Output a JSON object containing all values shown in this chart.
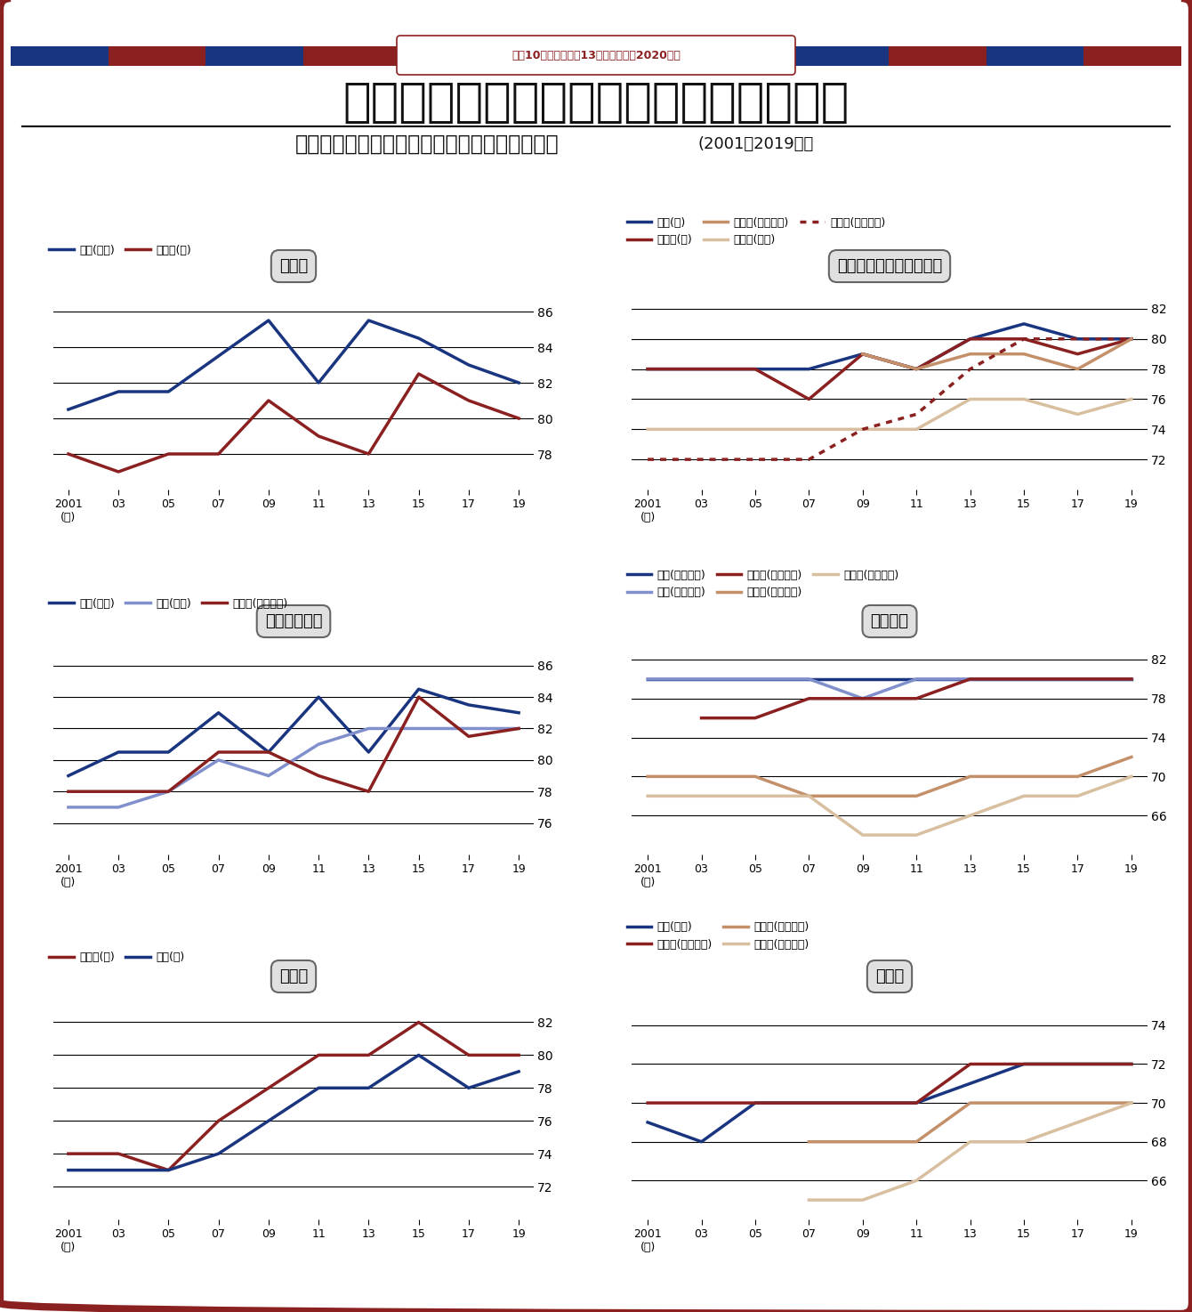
{
  "years": [
    2001,
    2003,
    2005,
    2007,
    2009,
    2011,
    2013,
    2015,
    2017,
    2019
  ],
  "x_labels": [
    "2001\n(年)",
    "03",
    "05",
    "07",
    "09",
    "11",
    "13",
    "15",
    "17",
    "19"
  ],
  "main_title": "早慶ともに非看板学部の偶差値が上昇中",
  "subtitle_bold": "慶應義塾大学・早稲田大学の入学偶差値の推移",
  "subtitle_normal": "(2001～2019年）",
  "header_note": "慶應10学部・早稲甑13学部の新序列2020年版",
  "border_red": "#8B2020",
  "border_blue": "#1a3580",
  "stripe_colors": [
    "#1a3580",
    "#8B2020"
  ],
  "law": {
    "title": "法律系",
    "ylim": [
      76,
      87
    ],
    "yticks": [
      78,
      80,
      82,
      84,
      86
    ],
    "legend_ncol": 2,
    "legend_nrow": 1,
    "series": [
      {
        "label": "慶應(法法)",
        "color": "#1a3580",
        "linestyle": "solid",
        "values": [
          80.5,
          81.5,
          81.5,
          83.5,
          85.5,
          82.0,
          85.5,
          84.5,
          83.0,
          82.0
        ]
      },
      {
        "label": "早稲田(法)",
        "color": "#8B2020",
        "linestyle": "solid",
        "values": [
          78.0,
          77.0,
          78.0,
          78.0,
          81.0,
          79.0,
          78.0,
          82.5,
          81.0,
          80.0
        ]
      }
    ]
  },
  "literature": {
    "title": "文学・社会学・教育学系",
    "ylim": [
      70,
      83
    ],
    "yticks": [
      72,
      74,
      76,
      78,
      80,
      82
    ],
    "legend_ncol": 3,
    "legend_nrow": 2,
    "series": [
      {
        "label": "慶應(文)",
        "color": "#1a3580",
        "linestyle": "solid",
        "values": [
          78.0,
          78.0,
          78.0,
          78.0,
          79.0,
          78.0,
          80.0,
          81.0,
          80.0,
          80.0
        ]
      },
      {
        "label": "早稲田(文)",
        "color": "#8B2020",
        "linestyle": "solid",
        "values": [
          78.0,
          78.0,
          78.0,
          76.0,
          79.0,
          78.0,
          80.0,
          80.0,
          79.0,
          80.0
        ]
      },
      {
        "label": "早稲田(文化構想)",
        "color": "#c4906a",
        "linestyle": "solid",
        "values": [
          null,
          null,
          null,
          null,
          79.0,
          78.0,
          79.0,
          79.0,
          78.0,
          80.0
        ]
      },
      {
        "label": "早稲田(教育)",
        "color": "#d8bfa0",
        "linestyle": "solid",
        "values": [
          74.0,
          74.0,
          74.0,
          74.0,
          74.0,
          74.0,
          76.0,
          76.0,
          75.0,
          76.0
        ]
      },
      {
        "label": "早稲田(社会科学)",
        "color": "#8B2020",
        "linestyle": "dotted",
        "values": [
          72.0,
          72.0,
          72.0,
          72.0,
          74.0,
          75.0,
          78.0,
          80.0,
          80.0,
          80.0
        ]
      }
    ]
  },
  "politics": {
    "title": "政治・経済系",
    "ylim": [
      74,
      87
    ],
    "yticks": [
      76,
      78,
      80,
      82,
      84,
      86
    ],
    "legend_ncol": 3,
    "legend_nrow": 1,
    "series": [
      {
        "label": "慶應(法政)",
        "color": "#1a3580",
        "linestyle": "solid",
        "values": [
          79.0,
          80.5,
          80.5,
          83.0,
          80.5,
          84.0,
          80.5,
          84.5,
          83.5,
          83.0
        ]
      },
      {
        "label": "慶應(経済)",
        "color": "#8090cc",
        "linestyle": "solid",
        "values": [
          77.0,
          77.0,
          78.0,
          80.0,
          79.0,
          81.0,
          82.0,
          82.0,
          82.0,
          82.0
        ]
      },
      {
        "label": "早稲田(政治経済)",
        "color": "#8B2020",
        "linestyle": "solid",
        "values": [
          78.0,
          78.0,
          78.0,
          80.5,
          80.5,
          79.0,
          78.0,
          84.0,
          81.5,
          82.0
        ]
      }
    ]
  },
  "interdisciplinary": {
    "title": "学際系等",
    "ylim": [
      62,
      83
    ],
    "yticks": [
      66,
      70,
      74,
      78,
      82
    ],
    "legend_ncol": 3,
    "legend_nrow": 2,
    "series": [
      {
        "label": "慶應(総合政策)",
        "color": "#1a3580",
        "linestyle": "solid",
        "values": [
          80.0,
          80.0,
          80.0,
          80.0,
          80.0,
          80.0,
          80.0,
          80.0,
          80.0,
          80.0
        ]
      },
      {
        "label": "慶應(環境情報)",
        "color": "#8090cc",
        "linestyle": "solid",
        "values": [
          80.0,
          80.0,
          80.0,
          80.0,
          78.0,
          80.0,
          80.0,
          80.0,
          80.0,
          80.0
        ]
      },
      {
        "label": "早稲田(国際教養)",
        "color": "#8B2020",
        "linestyle": "solid",
        "values": [
          null,
          76.0,
          76.0,
          78.0,
          78.0,
          78.0,
          80.0,
          80.0,
          80.0,
          80.0
        ]
      },
      {
        "label": "早稲田(人間科学)",
        "color": "#c4906a",
        "linestyle": "solid",
        "values": [
          70.0,
          70.0,
          70.0,
          68.0,
          68.0,
          68.0,
          70.0,
          70.0,
          70.0,
          72.0
        ]
      },
      {
        "label": "早稲田(スポーツ)",
        "color": "#d8bfa0",
        "linestyle": "solid",
        "values": [
          68.0,
          68.0,
          68.0,
          68.0,
          64.0,
          64.0,
          66.0,
          68.0,
          68.0,
          70.0
        ]
      }
    ]
  },
  "commerce": {
    "title": "商学系",
    "ylim": [
      70,
      83
    ],
    "yticks": [
      72,
      74,
      76,
      78,
      80,
      82
    ],
    "legend_ncol": 2,
    "legend_nrow": 1,
    "series": [
      {
        "label": "早稲田(商)",
        "color": "#8B2020",
        "linestyle": "solid",
        "values": [
          74.0,
          74.0,
          73.0,
          76.0,
          78.0,
          80.0,
          80.0,
          82.0,
          80.0,
          80.0
        ]
      },
      {
        "label": "慶應(商)",
        "color": "#1a3580",
        "linestyle": "solid",
        "values": [
          73.0,
          73.0,
          73.0,
          74.0,
          76.0,
          78.0,
          78.0,
          80.0,
          78.0,
          79.0
        ]
      }
    ]
  },
  "science": {
    "title": "理工系",
    "ylim": [
      64,
      75
    ],
    "yticks": [
      66,
      68,
      70,
      72,
      74
    ],
    "legend_ncol": 2,
    "legend_nrow": 2,
    "series": [
      {
        "label": "慶應(理工)",
        "color": "#1a3580",
        "linestyle": "solid",
        "values": [
          69.0,
          68.0,
          70.0,
          70.0,
          70.0,
          70.0,
          71.0,
          72.0,
          72.0,
          72.0
        ]
      },
      {
        "label": "早稲田(先進理工)",
        "color": "#8B2020",
        "linestyle": "solid",
        "values": [
          70.0,
          70.0,
          70.0,
          70.0,
          70.0,
          70.0,
          72.0,
          72.0,
          72.0,
          72.0
        ]
      },
      {
        "label": "早稲田(基幹理工)",
        "color": "#c4906a",
        "linestyle": "solid",
        "values": [
          null,
          null,
          null,
          68.0,
          68.0,
          68.0,
          70.0,
          70.0,
          70.0,
          70.0
        ]
      },
      {
        "label": "早稲田(創造理工)",
        "color": "#d8bfa0",
        "linestyle": "solid",
        "values": [
          null,
          null,
          null,
          65.0,
          65.0,
          66.0,
          68.0,
          68.0,
          69.0,
          70.0
        ]
      }
    ]
  }
}
